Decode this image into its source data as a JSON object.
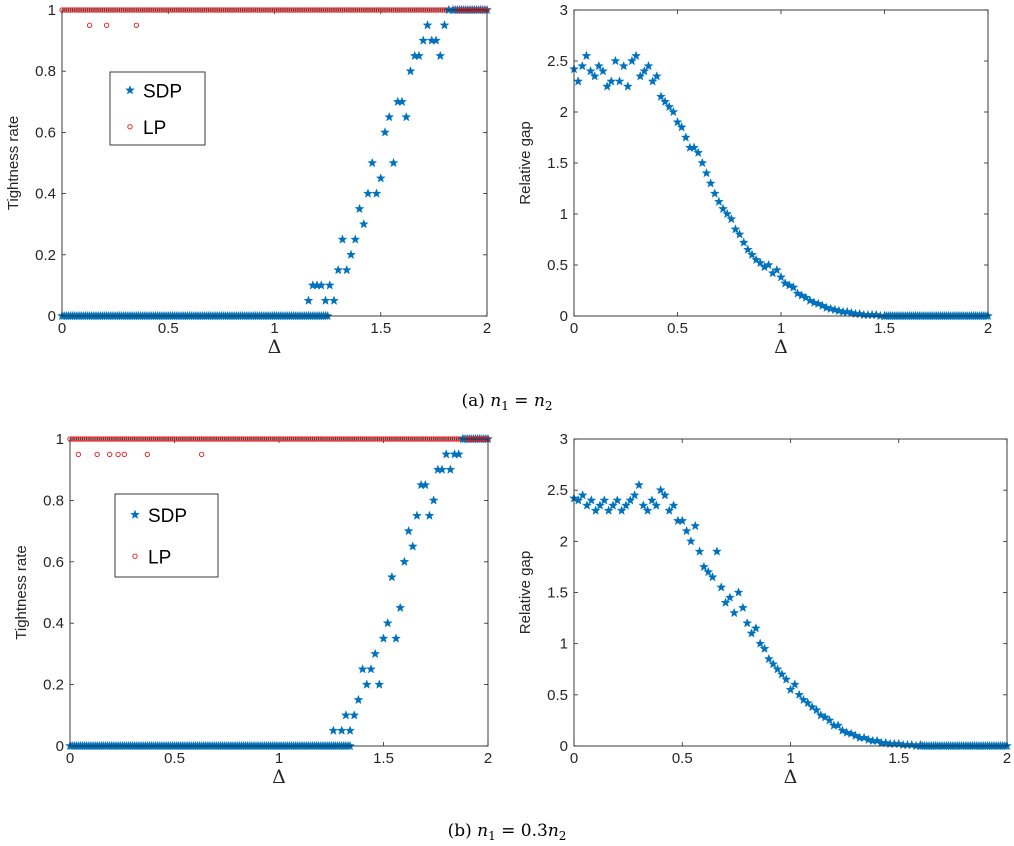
{
  "captions": [
    {
      "prefix": "(a) ",
      "n1": "n",
      "sub1": "1",
      "eq": " = ",
      "n2": "n",
      "sub2": "2",
      "coef": ""
    },
    {
      "prefix": "(b) ",
      "n1": "n",
      "sub1": "1",
      "eq": " = ",
      "n2": "n",
      "sub2": "2",
      "coef": "0.3"
    }
  ],
  "colors": {
    "sdp": "#0072BD",
    "lp": "#D95319",
    "lp_marker": "#e31a1c",
    "axis": "#262626"
  },
  "chart_data": [
    {
      "id": "a-tightness",
      "type": "scatter",
      "title": "",
      "xlabel": "Δ",
      "ylabel": "Tightness rate",
      "xlim": [
        0,
        2
      ],
      "ylim": [
        0,
        1
      ],
      "xticks": [
        0,
        0.5,
        1,
        1.5,
        2
      ],
      "xtick_labels": [
        "0",
        "0.5",
        "1",
        "1.5",
        "2"
      ],
      "yticks": [
        0,
        0.2,
        0.4,
        0.6,
        0.8,
        1
      ],
      "ytick_labels": [
        "0",
        "0.2",
        "0.4",
        "0.6",
        "0.8",
        "1"
      ],
      "grid": false,
      "legend": "upper-left",
      "series": [
        {
          "name": "SDP",
          "marker": "star",
          "color": "#0072BD",
          "x": [
            1.16,
            1.18,
            1.2,
            1.22,
            1.24,
            1.26,
            1.28,
            1.3,
            1.32,
            1.34,
            1.36,
            1.38,
            1.4,
            1.42,
            1.44,
            1.46,
            1.48,
            1.5,
            1.52,
            1.54,
            1.56,
            1.58,
            1.6,
            1.62,
            1.64,
            1.66,
            1.68,
            1.7,
            1.72,
            1.74,
            1.76,
            1.78,
            1.8,
            1.82,
            1.84
          ],
          "y": [
            0.05,
            0.1,
            0.1,
            0.1,
            0.05,
            0.1,
            0.05,
            0.15,
            0.25,
            0.15,
            0.2,
            0.25,
            0.35,
            0.3,
            0.4,
            0.5,
            0.4,
            0.45,
            0.6,
            0.65,
            0.5,
            0.7,
            0.7,
            0.65,
            0.8,
            0.85,
            0.85,
            0.9,
            0.95,
            0.9,
            0.9,
            0.85,
            0.95,
            1,
            1
          ]
        },
        {
          "name": "LP",
          "marker": "circle",
          "color": "#e31a1c",
          "x": [
            0.13,
            0.21,
            0.35
          ],
          "y": [
            0.95,
            0.95,
            0.95
          ]
        }
      ],
      "baseline_series": [
        {
          "name": "SDP",
          "x_range": [
            0,
            1.25
          ],
          "step": 0.01,
          "y": 0
        },
        {
          "name": "SDP",
          "x_range": [
            1.85,
            2
          ],
          "step": 0.01,
          "y": 1
        },
        {
          "name": "LP",
          "x_range": [
            0,
            2
          ],
          "step": 0.01,
          "y": 1
        }
      ]
    },
    {
      "id": "a-gap",
      "type": "scatter",
      "title": "",
      "xlabel": "Δ",
      "ylabel": "Relative gap",
      "xlim": [
        0,
        2
      ],
      "ylim": [
        0,
        3
      ],
      "xticks": [
        0,
        0.5,
        1,
        1.5,
        2
      ],
      "xtick_labels": [
        "0",
        "0.5",
        "1",
        "1.5",
        "2"
      ],
      "yticks": [
        0,
        0.5,
        1,
        1.5,
        2,
        2.5,
        3
      ],
      "ytick_labels": [
        "0",
        "0.5",
        "1",
        "1.5",
        "2",
        "2.5",
        "3"
      ],
      "grid": false,
      "legend": "none",
      "series": [
        {
          "name": "",
          "marker": "star",
          "color": "#0072BD",
          "x": [
            0,
            0.02,
            0.04,
            0.06,
            0.08,
            0.1,
            0.12,
            0.14,
            0.16,
            0.18,
            0.2,
            0.22,
            0.24,
            0.26,
            0.28,
            0.3,
            0.32,
            0.34,
            0.36,
            0.38,
            0.4,
            0.42,
            0.44,
            0.46,
            0.48,
            0.5,
            0.52,
            0.54,
            0.56,
            0.58,
            0.6,
            0.62,
            0.64,
            0.66,
            0.68,
            0.7,
            0.72,
            0.74,
            0.76,
            0.78,
            0.8,
            0.82,
            0.84,
            0.86,
            0.88,
            0.9,
            0.92,
            0.94,
            0.96,
            0.98,
            1,
            1.02,
            1.04,
            1.06,
            1.08,
            1.1,
            1.12,
            1.14,
            1.16,
            1.18,
            1.2,
            1.22,
            1.24,
            1.26,
            1.28,
            1.3,
            1.32,
            1.34,
            1.36,
            1.38,
            1.4,
            1.42,
            1.44,
            1.46,
            1.48,
            1.5
          ],
          "y": [
            2.42,
            2.3,
            2.45,
            2.55,
            2.4,
            2.35,
            2.45,
            2.4,
            2.25,
            2.3,
            2.5,
            2.3,
            2.45,
            2.25,
            2.5,
            2.55,
            2.35,
            2.4,
            2.45,
            2.3,
            2.35,
            2.15,
            2.1,
            2.05,
            2.0,
            1.9,
            1.85,
            1.75,
            1.65,
            1.65,
            1.6,
            1.5,
            1.4,
            1.3,
            1.2,
            1.12,
            1.05,
            1.0,
            0.95,
            0.85,
            0.8,
            0.72,
            0.65,
            0.6,
            0.55,
            0.52,
            0.48,
            0.5,
            0.42,
            0.45,
            0.38,
            0.32,
            0.3,
            0.28,
            0.22,
            0.2,
            0.18,
            0.15,
            0.13,
            0.12,
            0.1,
            0.08,
            0.07,
            0.06,
            0.05,
            0.04,
            0.04,
            0.03,
            0.02,
            0.02,
            0.01,
            0.01,
            0.01,
            0.01,
            0.0,
            0.0
          ]
        }
      ],
      "baseline_series": [
        {
          "name": "",
          "x_range": [
            1.5,
            2
          ],
          "step": 0.01,
          "y": 0
        }
      ]
    },
    {
      "id": "b-tightness",
      "type": "scatter",
      "title": "",
      "xlabel": "Δ",
      "ylabel": "Tightness rate",
      "xlim": [
        0,
        2
      ],
      "ylim": [
        0,
        1
      ],
      "xticks": [
        0,
        0.5,
        1,
        1.5,
        2
      ],
      "xtick_labels": [
        "0",
        "0.5",
        "1",
        "1.5",
        "2"
      ],
      "yticks": [
        0,
        0.2,
        0.4,
        0.6,
        0.8,
        1
      ],
      "ytick_labels": [
        "0",
        "0.2",
        "0.4",
        "0.6",
        "0.8",
        "1"
      ],
      "grid": false,
      "legend": "upper-left",
      "series": [
        {
          "name": "SDP",
          "marker": "star",
          "color": "#0072BD",
          "x": [
            1.26,
            1.3,
            1.32,
            1.34,
            1.36,
            1.38,
            1.4,
            1.42,
            1.44,
            1.46,
            1.48,
            1.5,
            1.52,
            1.54,
            1.56,
            1.58,
            1.6,
            1.62,
            1.64,
            1.66,
            1.68,
            1.7,
            1.72,
            1.74,
            1.76,
            1.78,
            1.8,
            1.82,
            1.84,
            1.86,
            1.88
          ],
          "y": [
            0.05,
            0.05,
            0.1,
            0.05,
            0.1,
            0.15,
            0.25,
            0.2,
            0.25,
            0.3,
            0.2,
            0.35,
            0.4,
            0.55,
            0.35,
            0.45,
            0.6,
            0.7,
            0.65,
            0.75,
            0.85,
            0.85,
            0.75,
            0.8,
            0.9,
            0.9,
            0.95,
            0.9,
            0.95,
            0.95,
            1
          ]
        },
        {
          "name": "LP",
          "marker": "circle",
          "color": "#e31a1c",
          "x": [
            0.04,
            0.13,
            0.19,
            0.23,
            0.26,
            0.37,
            0.63
          ],
          "y": [
            0.95,
            0.95,
            0.95,
            0.95,
            0.95,
            0.95,
            0.95
          ]
        }
      ],
      "baseline_series": [
        {
          "name": "SDP",
          "x_range": [
            0,
            1.34
          ],
          "step": 0.01,
          "y": 0
        },
        {
          "name": "SDP",
          "x_range": [
            1.88,
            2
          ],
          "step": 0.01,
          "y": 1
        },
        {
          "name": "LP",
          "x_range": [
            0,
            2
          ],
          "step": 0.01,
          "y": 1
        }
      ]
    },
    {
      "id": "b-gap",
      "type": "scatter",
      "title": "",
      "xlabel": "Δ",
      "ylabel": "Relative gap",
      "xlim": [
        0,
        2
      ],
      "ylim": [
        0,
        3
      ],
      "xticks": [
        0,
        0.5,
        1,
        1.5,
        2
      ],
      "xtick_labels": [
        "0",
        "0.5",
        "1",
        "1.5",
        "2"
      ],
      "yticks": [
        0,
        0.5,
        1,
        1.5,
        2,
        2.5,
        3
      ],
      "ytick_labels": [
        "0",
        "0.5",
        "1",
        "1.5",
        "2",
        "2.5",
        "3"
      ],
      "grid": false,
      "legend": "none",
      "series": [
        {
          "name": "",
          "marker": "star",
          "color": "#0072BD",
          "x": [
            0,
            0.02,
            0.04,
            0.06,
            0.08,
            0.1,
            0.12,
            0.14,
            0.16,
            0.18,
            0.2,
            0.22,
            0.24,
            0.26,
            0.28,
            0.3,
            0.32,
            0.34,
            0.36,
            0.38,
            0.4,
            0.42,
            0.44,
            0.46,
            0.48,
            0.5,
            0.52,
            0.54,
            0.56,
            0.58,
            0.6,
            0.62,
            0.64,
            0.66,
            0.68,
            0.7,
            0.72,
            0.74,
            0.76,
            0.78,
            0.8,
            0.82,
            0.84,
            0.86,
            0.88,
            0.9,
            0.92,
            0.94,
            0.96,
            0.98,
            1,
            1.02,
            1.04,
            1.06,
            1.08,
            1.1,
            1.12,
            1.14,
            1.16,
            1.18,
            1.2,
            1.22,
            1.24,
            1.26,
            1.28,
            1.3,
            1.32,
            1.34,
            1.36,
            1.38,
            1.4,
            1.42,
            1.44,
            1.46,
            1.48,
            1.5,
            1.52,
            1.54,
            1.56,
            1.58,
            1.6
          ],
          "y": [
            2.42,
            2.4,
            2.45,
            2.35,
            2.4,
            2.3,
            2.35,
            2.4,
            2.3,
            2.35,
            2.4,
            2.3,
            2.35,
            2.4,
            2.45,
            2.55,
            2.35,
            2.3,
            2.4,
            2.35,
            2.5,
            2.45,
            2.3,
            2.35,
            2.2,
            2.2,
            2.1,
            2.0,
            2.15,
            1.9,
            1.75,
            1.7,
            1.65,
            1.9,
            1.55,
            1.4,
            1.45,
            1.3,
            1.5,
            1.35,
            1.2,
            1.1,
            1.15,
            1.0,
            0.95,
            0.85,
            0.8,
            0.75,
            0.7,
            0.65,
            0.55,
            0.6,
            0.5,
            0.45,
            0.42,
            0.38,
            0.35,
            0.3,
            0.28,
            0.25,
            0.2,
            0.2,
            0.15,
            0.13,
            0.12,
            0.1,
            0.08,
            0.08,
            0.06,
            0.05,
            0.05,
            0.03,
            0.03,
            0.02,
            0.02,
            0.02,
            0.01,
            0.01,
            0.01,
            0.0,
            0.01
          ]
        }
      ],
      "baseline_series": [
        {
          "name": "",
          "x_range": [
            1.6,
            2
          ],
          "step": 0.01,
          "y": 0
        }
      ]
    }
  ]
}
